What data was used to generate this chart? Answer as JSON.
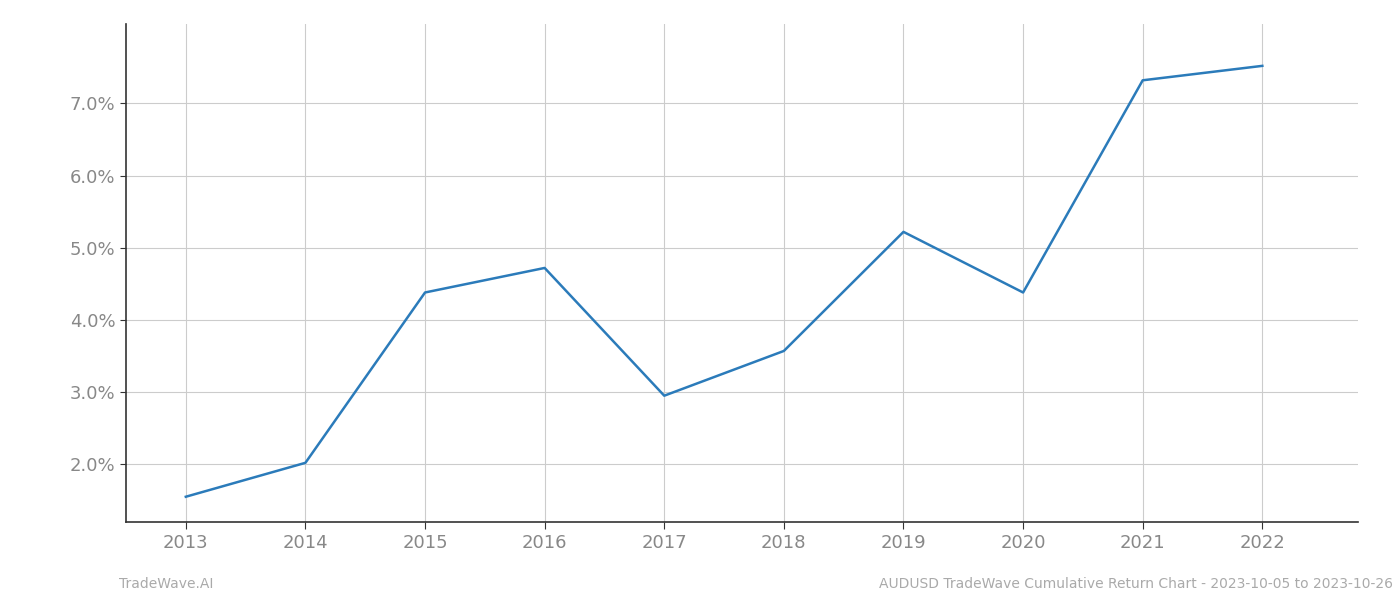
{
  "x_years": [
    2013,
    2014,
    2015,
    2016,
    2017,
    2018,
    2019,
    2020,
    2021,
    2022
  ],
  "y_values": [
    1.55,
    2.02,
    4.38,
    4.72,
    2.95,
    3.57,
    5.22,
    4.38,
    7.32,
    7.52
  ],
  "line_color": "#2b7bba",
  "line_width": 1.8,
  "background_color": "#ffffff",
  "grid_color": "#cccccc",
  "tick_label_color": "#888888",
  "spine_color": "#333333",
  "yticks": [
    2.0,
    3.0,
    4.0,
    5.0,
    6.0,
    7.0
  ],
  "xlim": [
    2012.5,
    2022.8
  ],
  "ylim": [
    1.2,
    8.1
  ],
  "footer_left": "TradeWave.AI",
  "footer_right": "AUDUSD TradeWave Cumulative Return Chart - 2023-10-05 to 2023-10-26",
  "footer_fontsize": 10,
  "footer_color": "#aaaaaa",
  "tick_fontsize": 13,
  "figsize": [
    14.0,
    6.0
  ],
  "dpi": 100
}
